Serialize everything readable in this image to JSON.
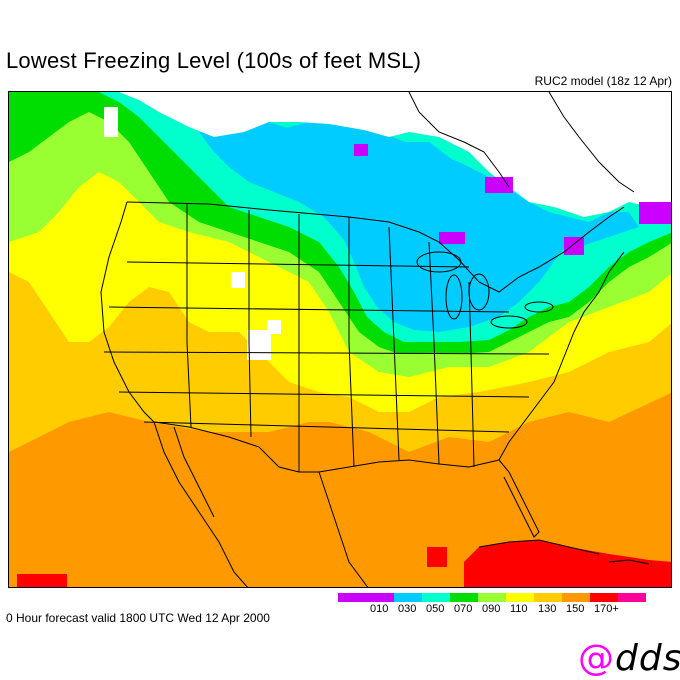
{
  "title": "Lowest Freezing Level (100s of feet MSL)",
  "model_label": "RUC2 model (18z 12 Apr)",
  "valid_text": "0 Hour forecast valid 1800 UTC Wed 12 Apr 2000",
  "logo": {
    "at": "@",
    "text": "dds"
  },
  "legend": {
    "swatches": [
      {
        "color": "#cc00ff",
        "label": ""
      },
      {
        "color": "#cc00ff",
        "label": "010"
      },
      {
        "color": "#00ccff",
        "label": "030"
      },
      {
        "color": "#00ffcc",
        "label": "050"
      },
      {
        "color": "#00dd00",
        "label": "070"
      },
      {
        "color": "#99ff33",
        "label": "090"
      },
      {
        "color": "#ffff00",
        "label": "110"
      },
      {
        "color": "#ffcc00",
        "label": "130"
      },
      {
        "color": "#ff9900",
        "label": "150"
      },
      {
        "color": "#ff0000",
        "label": "170+"
      },
      {
        "color": "#ff0099",
        "label": ""
      }
    ]
  },
  "colors": {
    "level_010": "#cc00ff",
    "level_030": "#00ccff",
    "level_050": "#00ffcc",
    "level_070": "#00dd00",
    "level_090": "#99ff33",
    "level_110": "#ffff00",
    "level_130": "#ffcc00",
    "level_150": "#ff9900",
    "level_170_plus": "#ff0000",
    "level_above": "#ff0099",
    "no_data": "#ffffff",
    "boundaries": "#000000"
  }
}
